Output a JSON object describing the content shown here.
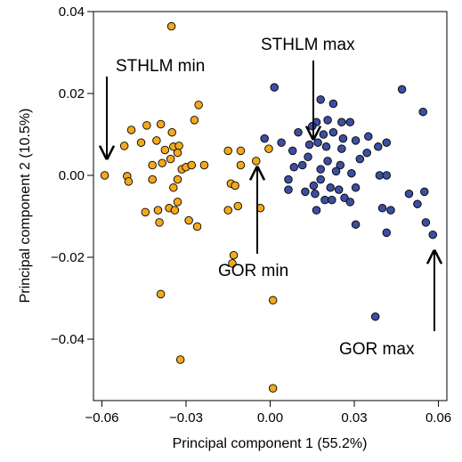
{
  "chart_data": {
    "type": "scatter",
    "title": "",
    "xlabel": "Principal component 1 (55.2%)",
    "ylabel": "Principal component 2 (10.5%)",
    "xlim": [
      -0.063,
      0.063
    ],
    "ylim": [
      -0.055,
      0.04
    ],
    "grid": false,
    "x_ticks": [
      {
        "value": -0.06,
        "label": "−0.06"
      },
      {
        "value": -0.03,
        "label": "−0.03"
      },
      {
        "value": 0.0,
        "label": "0.00"
      },
      {
        "value": 0.03,
        "label": "0.03"
      },
      {
        "value": 0.06,
        "label": "0.06"
      }
    ],
    "y_ticks": [
      {
        "value": 0.04,
        "label": "0.04"
      },
      {
        "value": 0.02,
        "label": "0.02"
      },
      {
        "value": 0.0,
        "label": "0.00"
      },
      {
        "value": -0.02,
        "label": "−0.02"
      },
      {
        "value": -0.04,
        "label": "−0.04"
      }
    ],
    "series": [
      {
        "color": "#f4a81c",
        "points": [
          [
            -0.0352,
            0.0364
          ],
          [
            -0.0495,
            0.0111
          ],
          [
            -0.0255,
            0.0172
          ],
          [
            -0.027,
            0.0135
          ],
          [
            -0.039,
            0.0125
          ],
          [
            -0.044,
            0.0122
          ],
          [
            -0.035,
            0.0105
          ],
          [
            -0.0405,
            0.0085
          ],
          [
            -0.046,
            0.008
          ],
          [
            -0.052,
            0.0072
          ],
          [
            -0.0345,
            0.007
          ],
          [
            -0.0325,
            0.0072
          ],
          [
            -0.0375,
            0.0062
          ],
          [
            -0.033,
            0.0055
          ],
          [
            -0.0355,
            0.004
          ],
          [
            -0.015,
            0.006
          ],
          [
            -0.0105,
            0.006
          ],
          [
            -0.0005,
            0.0065
          ],
          [
            -0.042,
            0.0025
          ],
          [
            -0.0385,
            0.003
          ],
          [
            -0.0315,
            0.0015
          ],
          [
            -0.03,
            0.002
          ],
          [
            -0.0235,
            0.0025
          ],
          [
            -0.028,
            0.0025
          ],
          [
            -0.0105,
            0.0025
          ],
          [
            -0.005,
            0.0035
          ],
          [
            -0.059,
            0.0
          ],
          [
            -0.051,
            -0.0002
          ],
          [
            -0.0505,
            -0.0015
          ],
          [
            -0.042,
            -0.001
          ],
          [
            -0.033,
            -0.001
          ],
          [
            -0.0345,
            -0.003
          ],
          [
            -0.014,
            -0.002
          ],
          [
            -0.0125,
            -0.0025
          ],
          [
            -0.036,
            -0.008
          ],
          [
            -0.034,
            -0.0085
          ],
          [
            -0.033,
            -0.0065
          ],
          [
            -0.0445,
            -0.009
          ],
          [
            -0.04,
            -0.0085
          ],
          [
            -0.0395,
            -0.0115
          ],
          [
            -0.029,
            -0.011
          ],
          [
            -0.015,
            -0.0085
          ],
          [
            -0.0115,
            -0.0075
          ],
          [
            -0.026,
            -0.0125
          ],
          [
            -0.0035,
            -0.008
          ],
          [
            -0.013,
            -0.0195
          ],
          [
            -0.0135,
            -0.0215
          ],
          [
            -0.039,
            -0.029
          ],
          [
            0.001,
            -0.0305
          ],
          [
            -0.032,
            -0.045
          ],
          [
            0.001,
            -0.052
          ]
        ]
      },
      {
        "color": "#3c4ea0",
        "points": [
          [
            0.0015,
            0.0215
          ],
          [
            0.047,
            0.021
          ],
          [
            0.018,
            0.0185
          ],
          [
            0.0225,
            0.0175
          ],
          [
            0.0545,
            0.0155
          ],
          [
            0.0205,
            0.0135
          ],
          [
            0.0165,
            0.013
          ],
          [
            0.0255,
            0.013
          ],
          [
            0.0285,
            0.013
          ],
          [
            0.015,
            0.012
          ],
          [
            0.01,
            0.0105
          ],
          [
            0.0225,
            0.0105
          ],
          [
            0.019,
            0.01
          ],
          [
            0.026,
            0.009
          ],
          [
            0.035,
            0.0095
          ],
          [
            0.0305,
            0.0085
          ],
          [
            -0.002,
            0.009
          ],
          [
            0.004,
            0.008
          ],
          [
            0.017,
            0.008
          ],
          [
            0.014,
            0.0075
          ],
          [
            0.02,
            0.007
          ],
          [
            0.0255,
            0.0065
          ],
          [
            0.0385,
            0.007
          ],
          [
            0.0415,
            0.008
          ],
          [
            0.008,
            0.006
          ],
          [
            0.0345,
            0.0055
          ],
          [
            0.0135,
            0.0045
          ],
          [
            0.032,
            0.004
          ],
          [
            0.0205,
            0.0035
          ],
          [
            0.025,
            0.0025
          ],
          [
            0.0115,
            0.0025
          ],
          [
            0.0085,
            0.002
          ],
          [
            0.018,
            0.0015
          ],
          [
            0.0235,
            0.001
          ],
          [
            0.029,
            0.0005
          ],
          [
            0.039,
            0.0
          ],
          [
            0.0415,
            0.0
          ],
          [
            0.018,
            -0.001
          ],
          [
            0.0065,
            -0.001
          ],
          [
            0.0155,
            -0.0025
          ],
          [
            0.0215,
            -0.003
          ],
          [
            0.0245,
            -0.0035
          ],
          [
            0.0305,
            -0.003
          ],
          [
            0.0065,
            -0.0035
          ],
          [
            0.0125,
            -0.004
          ],
          [
            0.016,
            -0.0045
          ],
          [
            0.0265,
            -0.0055
          ],
          [
            0.0495,
            -0.0045
          ],
          [
            0.055,
            -0.004
          ],
          [
            0.0195,
            -0.006
          ],
          [
            0.022,
            -0.006
          ],
          [
            0.0285,
            -0.0065
          ],
          [
            0.0165,
            -0.0085
          ],
          [
            0.04,
            -0.008
          ],
          [
            0.0525,
            -0.007
          ],
          [
            0.043,
            -0.0085
          ],
          [
            0.0555,
            -0.0115
          ],
          [
            0.0305,
            -0.012
          ],
          [
            0.058,
            -0.0145
          ],
          [
            0.0415,
            -0.014
          ],
          [
            0.0375,
            -0.0345
          ]
        ]
      }
    ],
    "annotations": [
      {
        "text": "STHLM min",
        "target": [
          -0.059,
          0.003
        ]
      },
      {
        "text": "STHLM max",
        "target": [
          0.015,
          0.008
        ]
      },
      {
        "text": "GOR min",
        "target": [
          -0.006,
          0.002
        ]
      },
      {
        "text": "GOR max",
        "target": [
          0.0575,
          -0.0185
        ]
      }
    ]
  }
}
